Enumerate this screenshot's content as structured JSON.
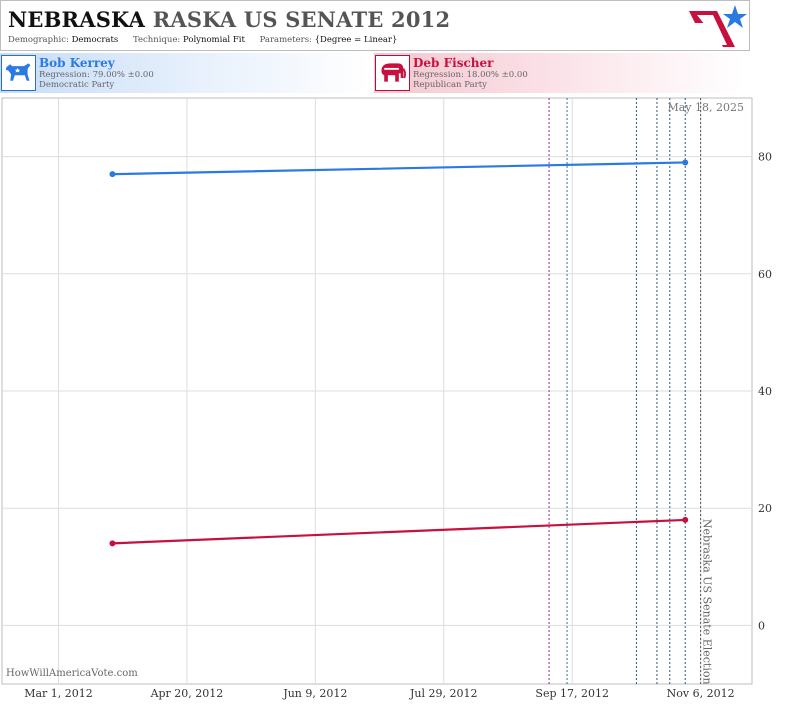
{
  "header": {
    "title_state": "NEBRASKA",
    "title_rest": "RASKA US SENATE 2012",
    "meta": [
      {
        "key": "Demographic:",
        "value": "Democrats"
      },
      {
        "key": "Technique:",
        "value": "Polynomial Fit"
      },
      {
        "key": "Parameters:",
        "value": "{Degree = Linear}"
      }
    ]
  },
  "candidates": [
    {
      "name": "Bob Kerrey",
      "regression": "Regression: 79.00% ±0.00",
      "party": "Democratic Party",
      "icon": "donkey-icon",
      "color": "#2a7ae2"
    },
    {
      "name": "Deb Fischer",
      "regression": "Regression: 18.00% ±0.00",
      "party": "Republican Party",
      "icon": "elephant-icon",
      "color": "#c8103e"
    }
  ],
  "colors": {
    "dem": "#2a7ae2",
    "rep": "#c8103e",
    "grid": "#dddddd",
    "accent_red": "#c8103e",
    "accent_blue": "#2a7ae2"
  },
  "chart_data": {
    "type": "line",
    "date_label": "May 18, 2025",
    "watermark": "HowWillAmericaVote.com",
    "election_label": "Nebraska US Senate Election",
    "x_domain": [
      "2012-02-08",
      "2012-11-26"
    ],
    "ylim": [
      -10,
      90
    ],
    "yticks": [
      0,
      20,
      40,
      60,
      80
    ],
    "xticks": [
      {
        "date": "2012-03-01",
        "label": "Mar 1, 2012"
      },
      {
        "date": "2012-04-20",
        "label": "Apr 20, 2012"
      },
      {
        "date": "2012-06-09",
        "label": "Jun 9, 2012"
      },
      {
        "date": "2012-07-29",
        "label": "Jul 29, 2012"
      },
      {
        "date": "2012-09-17",
        "label": "Sep 17, 2012"
      },
      {
        "date": "2012-11-06",
        "label": "Nov 6, 2012"
      }
    ],
    "series": [
      {
        "name": "Bob Kerrey",
        "color": "#2a7ae2",
        "x": [
          "2012-03-22",
          "2012-10-31"
        ],
        "y": [
          77.0,
          79.0
        ]
      },
      {
        "name": "Deb Fischer",
        "color": "#c8103e",
        "x": [
          "2012-03-22",
          "2012-10-31"
        ],
        "y": [
          14.0,
          18.0
        ]
      }
    ],
    "event_lines": [
      {
        "date": "2012-09-08",
        "color": "#8a2aa0"
      },
      {
        "date": "2012-09-15",
        "color": "#2a7a8a"
      },
      {
        "date": "2012-10-12",
        "color": "#2a5a7a"
      },
      {
        "date": "2012-10-20",
        "color": "#2a5a7a"
      },
      {
        "date": "2012-10-25",
        "color": "#2a5a7a"
      },
      {
        "date": "2012-10-31",
        "color": "#2a5a7a"
      },
      {
        "date": "2012-11-06",
        "color": "#555555"
      }
    ]
  }
}
